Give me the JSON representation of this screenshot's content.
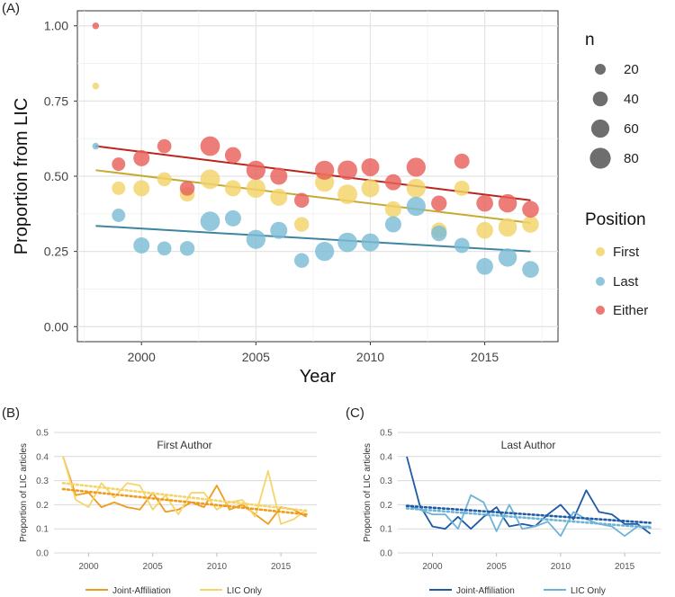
{
  "chart_data": [
    {
      "panel_label": "(A)",
      "type": "scatter",
      "xlabel": "Year",
      "ylabel": "Proportion from LIC",
      "xlim": [
        1997.2,
        2018.2
      ],
      "ylim": [
        -0.05,
        1.05
      ],
      "x_ticks": [
        2000,
        2005,
        2010,
        2015
      ],
      "x_tick_labels": [
        "2000",
        "2005",
        "2010",
        "2015"
      ],
      "y_ticks": [
        0,
        0.25,
        0.5,
        0.75,
        1.0
      ],
      "y_tick_labels": [
        "0.00",
        "0.25",
        "0.50",
        "0.75",
        "1.00"
      ],
      "grid": true,
      "legend_size": {
        "title": "n",
        "values": [
          20,
          40,
          60,
          80
        ],
        "labels": [
          "20",
          "40",
          "60",
          "80"
        ]
      },
      "legend_color": {
        "title": "Position",
        "labels": [
          "First",
          "Last",
          "Either"
        ]
      },
      "series": [
        {
          "name": "First",
          "color": "#f2d369",
          "x": [
            1998,
            1999,
            2000,
            2001,
            2002,
            2003,
            2004,
            2005,
            2006,
            2007,
            2008,
            2009,
            2010,
            2011,
            2012,
            2013,
            2014,
            2015,
            2016,
            2017
          ],
          "y": [
            0.8,
            0.46,
            0.46,
            0.49,
            0.44,
            0.49,
            0.46,
            0.46,
            0.43,
            0.34,
            0.48,
            0.44,
            0.46,
            0.39,
            0.46,
            0.32,
            0.46,
            0.32,
            0.33,
            0.34
          ],
          "n": [
            3,
            22,
            35,
            25,
            28,
            55,
            35,
            52,
            40,
            28,
            52,
            55,
            45,
            35,
            52,
            32,
            30,
            38,
            48,
            38
          ],
          "trend": [
            0.52,
            0.345
          ]
        },
        {
          "name": "Last",
          "color": "#7bbcd6",
          "x": [
            1998,
            1999,
            2000,
            2001,
            2002,
            2003,
            2004,
            2005,
            2006,
            2007,
            2008,
            2009,
            2010,
            2011,
            2012,
            2013,
            2014,
            2015,
            2016,
            2017
          ],
          "y": [
            0.6,
            0.37,
            0.27,
            0.26,
            0.26,
            0.35,
            0.36,
            0.29,
            0.32,
            0.22,
            0.25,
            0.28,
            0.28,
            0.34,
            0.4,
            0.31,
            0.27,
            0.2,
            0.23,
            0.19
          ],
          "n": [
            3,
            22,
            35,
            25,
            28,
            55,
            35,
            52,
            40,
            28,
            52,
            55,
            45,
            35,
            52,
            32,
            30,
            38,
            48,
            38
          ],
          "trend": [
            0.335,
            0.25
          ]
        },
        {
          "name": "Either",
          "color": "#e8605a",
          "x": [
            1998,
            1999,
            2000,
            2001,
            2002,
            2003,
            2004,
            2005,
            2006,
            2007,
            2008,
            2009,
            2010,
            2011,
            2012,
            2013,
            2014,
            2015,
            2016,
            2017
          ],
          "y": [
            1.0,
            0.54,
            0.56,
            0.6,
            0.46,
            0.6,
            0.57,
            0.52,
            0.5,
            0.42,
            0.52,
            0.52,
            0.53,
            0.48,
            0.53,
            0.41,
            0.55,
            0.41,
            0.41,
            0.39
          ],
          "n": [
            3,
            22,
            35,
            25,
            28,
            55,
            35,
            52,
            40,
            28,
            52,
            55,
            45,
            35,
            52,
            32,
            30,
            38,
            48,
            38
          ],
          "trend": [
            0.6,
            0.42
          ]
        }
      ]
    },
    {
      "panel_label": "(B)",
      "type": "line",
      "title": "First Author",
      "ylabel": "Proportion of LIC articles",
      "xlim": [
        1997.3,
        2017.8
      ],
      "ylim": [
        0,
        0.5
      ],
      "x_ticks": [
        2000,
        2005,
        2010,
        2015
      ],
      "x_tick_labels": [
        "2000",
        "2005",
        "2010",
        "2015"
      ],
      "y_ticks": [
        0,
        0.1,
        0.2,
        0.3,
        0.4,
        0.5
      ],
      "y_tick_labels": [
        "0.0",
        "0.1",
        "0.2",
        "0.3",
        "0.4",
        "0.5"
      ],
      "grid": true,
      "legend_labels": [
        "Joint-Affiliation",
        "LIC Only"
      ],
      "series": [
        {
          "name": "Joint-Affiliation",
          "color": "#ef9b1e",
          "x": [
            1998,
            1999,
            2000,
            2001,
            2002,
            2003,
            2004,
            2005,
            2006,
            2007,
            2008,
            2009,
            2010,
            2011,
            2012,
            2013,
            2014,
            2015,
            2016,
            2017
          ],
          "values": [
            0.4,
            0.24,
            0.25,
            0.19,
            0.21,
            0.19,
            0.18,
            0.25,
            0.17,
            0.18,
            0.21,
            0.19,
            0.28,
            0.18,
            0.2,
            0.16,
            0.12,
            0.19,
            0.18,
            0.15
          ],
          "trend": [
            0.265,
            0.16
          ]
        },
        {
          "name": "LIC Only",
          "color": "#f5d56a",
          "x": [
            1998,
            1999,
            2000,
            2001,
            2002,
            2003,
            2004,
            2005,
            2006,
            2007,
            2008,
            2009,
            2010,
            2011,
            2012,
            2013,
            2014,
            2015,
            2016,
            2017
          ],
          "values": [
            0.4,
            0.22,
            0.19,
            0.29,
            0.23,
            0.29,
            0.28,
            0.18,
            0.24,
            0.16,
            0.25,
            0.25,
            0.18,
            0.21,
            0.22,
            0.15,
            0.34,
            0.12,
            0.14,
            0.18
          ],
          "trend": [
            0.29,
            0.175
          ]
        }
      ]
    },
    {
      "panel_label": "(C)",
      "type": "line",
      "title": "Last Author",
      "ylabel": "Proportion of LIC articles",
      "xlim": [
        1997.3,
        2017.8
      ],
      "ylim": [
        0,
        0.5
      ],
      "x_ticks": [
        2000,
        2005,
        2010,
        2015
      ],
      "x_tick_labels": [
        "2000",
        "2005",
        "2010",
        "2015"
      ],
      "y_ticks": [
        0,
        0.1,
        0.2,
        0.3,
        0.4,
        0.5
      ],
      "y_tick_labels": [
        "0.0",
        "0.1",
        "0.2",
        "0.3",
        "0.4",
        "0.5"
      ],
      "grid": true,
      "legend_labels": [
        "Joint-Affiliation",
        "LIC Only"
      ],
      "series": [
        {
          "name": "Joint-Affiliation",
          "color": "#1f5aa6",
          "x": [
            1998,
            1999,
            2000,
            2001,
            2002,
            2003,
            2004,
            2005,
            2006,
            2007,
            2008,
            2009,
            2010,
            2011,
            2012,
            2013,
            2014,
            2015,
            2016,
            2017
          ],
          "values": [
            0.4,
            0.2,
            0.11,
            0.1,
            0.15,
            0.1,
            0.15,
            0.19,
            0.11,
            0.12,
            0.11,
            0.16,
            0.2,
            0.14,
            0.26,
            0.17,
            0.16,
            0.12,
            0.12,
            0.08
          ],
          "trend": [
            0.195,
            0.125
          ]
        },
        {
          "name": "LIC Only",
          "color": "#6db3d6",
          "x": [
            1998,
            1999,
            2000,
            2001,
            2002,
            2003,
            2004,
            2005,
            2006,
            2007,
            2008,
            2009,
            2010,
            2011,
            2012,
            2013,
            2014,
            2015,
            2016,
            2017
          ],
          "values": [
            0.2,
            0.18,
            0.16,
            0.16,
            0.1,
            0.24,
            0.21,
            0.09,
            0.2,
            0.1,
            0.11,
            0.13,
            0.07,
            0.17,
            0.14,
            0.12,
            0.11,
            0.07,
            0.11,
            0.11
          ],
          "trend": [
            0.185,
            0.105
          ]
        }
      ]
    }
  ]
}
